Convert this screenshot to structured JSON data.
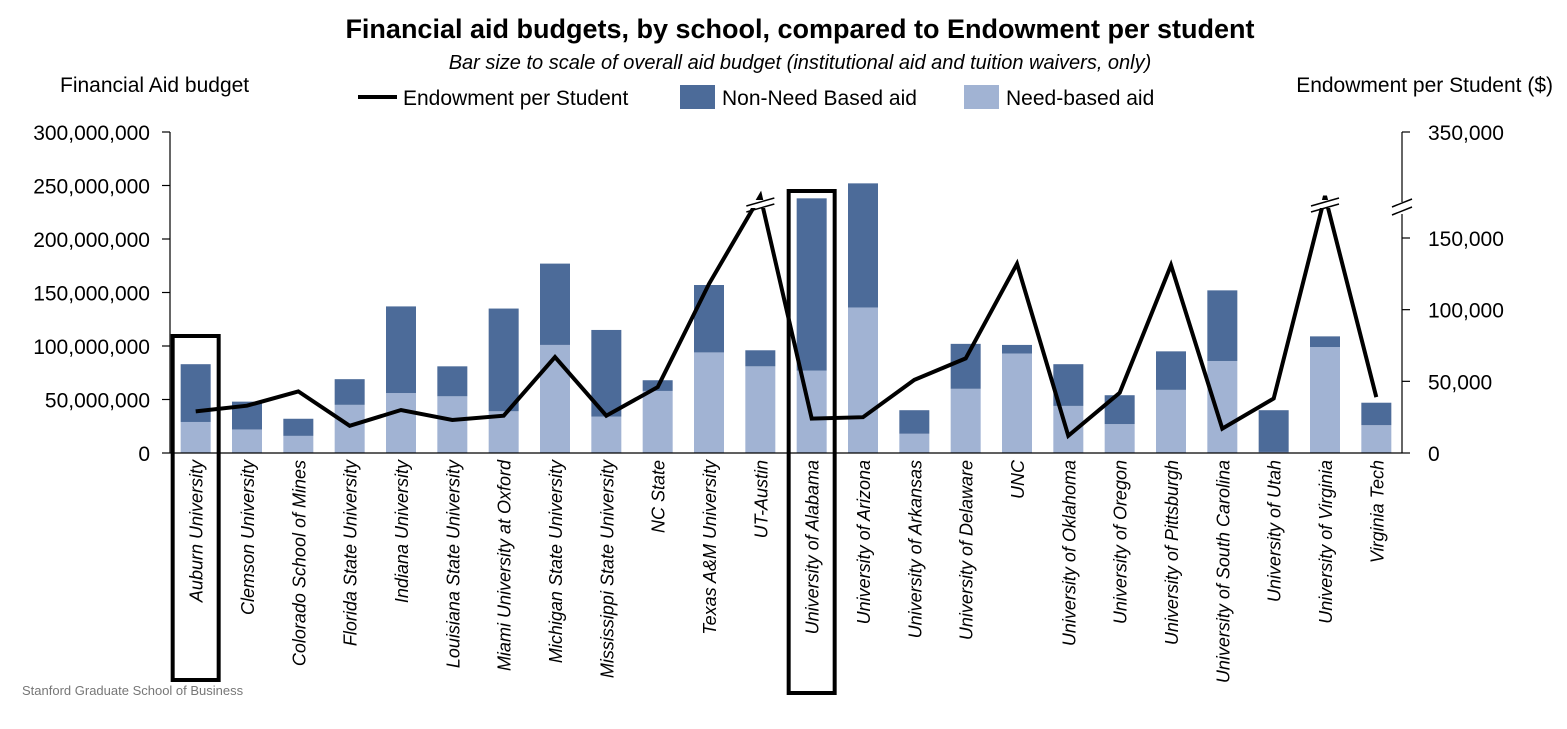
{
  "chart_data": {
    "type": "bar",
    "title": "Financial aid budgets, by school, compared to Endowment per student",
    "subtitle": "Bar size to scale of overall aid budget (institutional aid and tuition waivers, only)",
    "ylabel_left": "Financial Aid budget",
    "ylabel_right": "Endowment per Student ($)",
    "left_ticks": [
      "300,000,000",
      "250,000,000",
      "200,000,000",
      "150,000,000",
      "100,000,000",
      "50,000,000",
      "0"
    ],
    "right_ticks": [
      "350,000",
      "150,000",
      "100,000",
      "50,000",
      "0"
    ],
    "ylim_left": [
      0,
      300000000
    ],
    "ylim_right_lower": [
      0,
      150000
    ],
    "right_axis_break": true,
    "grid": false,
    "legend_position": "top",
    "categories": [
      "Auburn University",
      "Clemson University",
      "Colorado School of Mines",
      "Florida State University",
      "Indiana University",
      "Louisiana State University",
      "Miami University at Oxford",
      "Michigan State University",
      "Mississippi State University",
      "NC State",
      "Texas A&M University",
      "UT-Austin",
      "University of Alabama",
      "University of Arizona",
      "University of Arkansas",
      "University of Delaware",
      "UNC",
      "University of Oklahoma",
      "University of Oregon",
      "University of Pittsburgh",
      "University of South Carolina",
      "University of Utah",
      "University of Virginia",
      "Virginia Tech"
    ],
    "highlighted": [
      "Auburn University",
      "University of Alabama"
    ],
    "series": [
      {
        "name": "Need-based aid",
        "kind": "bar",
        "stack": "aid",
        "color": "#a1b3d3",
        "values": [
          29000000,
          22000000,
          16000000,
          45000000,
          56000000,
          53000000,
          39000000,
          101000000,
          34000000,
          58000000,
          94000000,
          81000000,
          77000000,
          136000000,
          18000000,
          60000000,
          93000000,
          44000000,
          27000000,
          59000000,
          86000000,
          1000000,
          99000000,
          26000000
        ]
      },
      {
        "name": "Non-Need Based aid",
        "kind": "bar",
        "stack": "aid",
        "color": "#4c6b99",
        "values": [
          54000000,
          26000000,
          16000000,
          24000000,
          81000000,
          28000000,
          96000000,
          76000000,
          81000000,
          10000000,
          63000000,
          15000000,
          161000000,
          116000000,
          22000000,
          42000000,
          8000000,
          39000000,
          27000000,
          36000000,
          66000000,
          39000000,
          10000000,
          21000000
        ]
      },
      {
        "name": "Endowment per Student",
        "kind": "line",
        "axis": "right",
        "color": "#000000",
        "values": [
          29000,
          33000,
          43000,
          19000,
          30000,
          23000,
          26000,
          67000,
          26000,
          46000,
          118000,
          168000,
          24000,
          25000,
          51000,
          66000,
          132000,
          12000,
          42000,
          131000,
          17000,
          38000,
          350000,
          39000
        ]
      }
    ]
  },
  "footer": "Stanford Graduate School of Business"
}
